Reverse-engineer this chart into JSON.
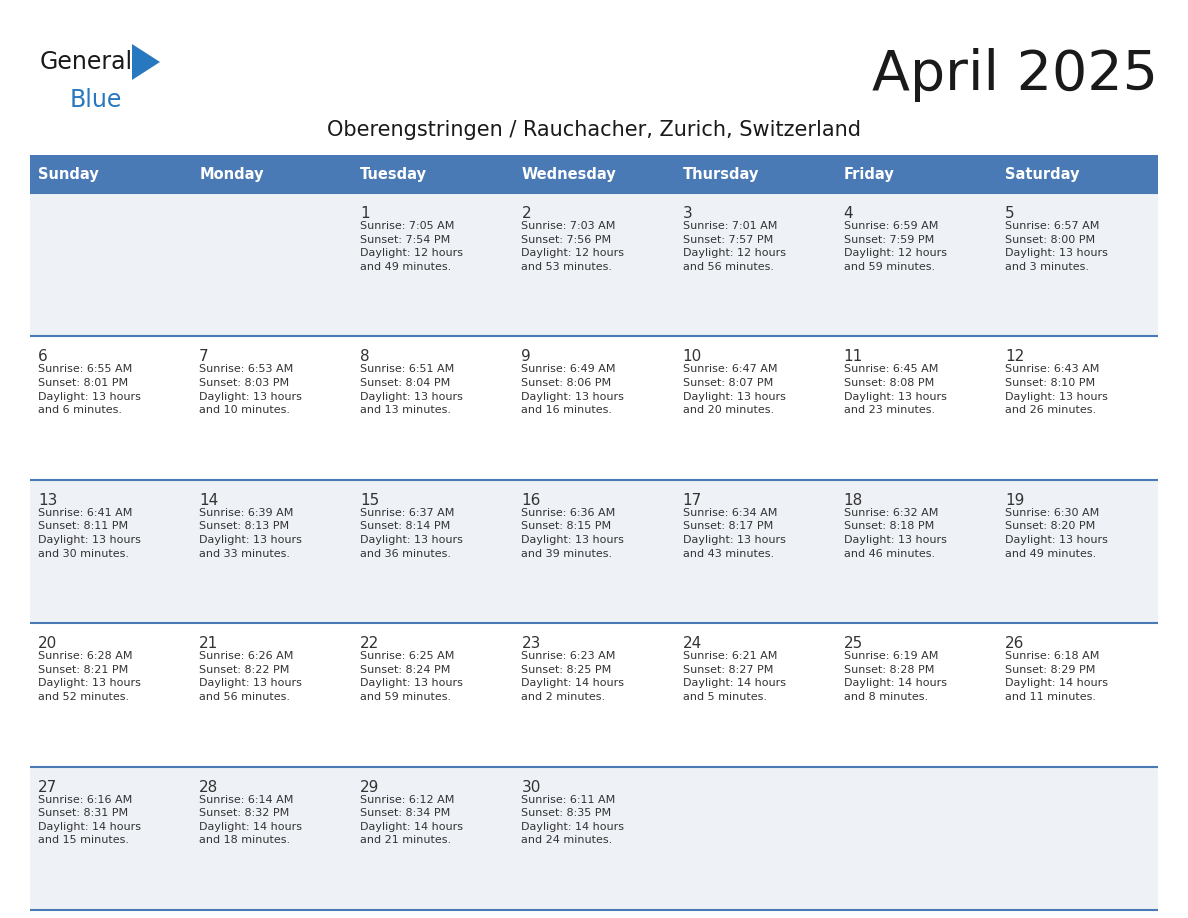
{
  "title": "April 2025",
  "subtitle": "Oberengstringen / Rauchacher, Zurich, Switzerland",
  "header_bg": "#4a7ab5",
  "header_text": "#ffffff",
  "row_bg_odd": "#eef2f7",
  "row_bg_even": "#ffffff",
  "border_color": "#4a7ab5",
  "day_num_color": "#333333",
  "info_text_color": "#333333",
  "logo_general_color": "#1a1a1a",
  "logo_blue_color": "#2878c0",
  "day_names": [
    "Sunday",
    "Monday",
    "Tuesday",
    "Wednesday",
    "Thursday",
    "Friday",
    "Saturday"
  ],
  "weeks": [
    [
      {
        "day": "",
        "info": ""
      },
      {
        "day": "",
        "info": ""
      },
      {
        "day": "1",
        "info": "Sunrise: 7:05 AM\nSunset: 7:54 PM\nDaylight: 12 hours\nand 49 minutes."
      },
      {
        "day": "2",
        "info": "Sunrise: 7:03 AM\nSunset: 7:56 PM\nDaylight: 12 hours\nand 53 minutes."
      },
      {
        "day": "3",
        "info": "Sunrise: 7:01 AM\nSunset: 7:57 PM\nDaylight: 12 hours\nand 56 minutes."
      },
      {
        "day": "4",
        "info": "Sunrise: 6:59 AM\nSunset: 7:59 PM\nDaylight: 12 hours\nand 59 minutes."
      },
      {
        "day": "5",
        "info": "Sunrise: 6:57 AM\nSunset: 8:00 PM\nDaylight: 13 hours\nand 3 minutes."
      }
    ],
    [
      {
        "day": "6",
        "info": "Sunrise: 6:55 AM\nSunset: 8:01 PM\nDaylight: 13 hours\nand 6 minutes."
      },
      {
        "day": "7",
        "info": "Sunrise: 6:53 AM\nSunset: 8:03 PM\nDaylight: 13 hours\nand 10 minutes."
      },
      {
        "day": "8",
        "info": "Sunrise: 6:51 AM\nSunset: 8:04 PM\nDaylight: 13 hours\nand 13 minutes."
      },
      {
        "day": "9",
        "info": "Sunrise: 6:49 AM\nSunset: 8:06 PM\nDaylight: 13 hours\nand 16 minutes."
      },
      {
        "day": "10",
        "info": "Sunrise: 6:47 AM\nSunset: 8:07 PM\nDaylight: 13 hours\nand 20 minutes."
      },
      {
        "day": "11",
        "info": "Sunrise: 6:45 AM\nSunset: 8:08 PM\nDaylight: 13 hours\nand 23 minutes."
      },
      {
        "day": "12",
        "info": "Sunrise: 6:43 AM\nSunset: 8:10 PM\nDaylight: 13 hours\nand 26 minutes."
      }
    ],
    [
      {
        "day": "13",
        "info": "Sunrise: 6:41 AM\nSunset: 8:11 PM\nDaylight: 13 hours\nand 30 minutes."
      },
      {
        "day": "14",
        "info": "Sunrise: 6:39 AM\nSunset: 8:13 PM\nDaylight: 13 hours\nand 33 minutes."
      },
      {
        "day": "15",
        "info": "Sunrise: 6:37 AM\nSunset: 8:14 PM\nDaylight: 13 hours\nand 36 minutes."
      },
      {
        "day": "16",
        "info": "Sunrise: 6:36 AM\nSunset: 8:15 PM\nDaylight: 13 hours\nand 39 minutes."
      },
      {
        "day": "17",
        "info": "Sunrise: 6:34 AM\nSunset: 8:17 PM\nDaylight: 13 hours\nand 43 minutes."
      },
      {
        "day": "18",
        "info": "Sunrise: 6:32 AM\nSunset: 8:18 PM\nDaylight: 13 hours\nand 46 minutes."
      },
      {
        "day": "19",
        "info": "Sunrise: 6:30 AM\nSunset: 8:20 PM\nDaylight: 13 hours\nand 49 minutes."
      }
    ],
    [
      {
        "day": "20",
        "info": "Sunrise: 6:28 AM\nSunset: 8:21 PM\nDaylight: 13 hours\nand 52 minutes."
      },
      {
        "day": "21",
        "info": "Sunrise: 6:26 AM\nSunset: 8:22 PM\nDaylight: 13 hours\nand 56 minutes."
      },
      {
        "day": "22",
        "info": "Sunrise: 6:25 AM\nSunset: 8:24 PM\nDaylight: 13 hours\nand 59 minutes."
      },
      {
        "day": "23",
        "info": "Sunrise: 6:23 AM\nSunset: 8:25 PM\nDaylight: 14 hours\nand 2 minutes."
      },
      {
        "day": "24",
        "info": "Sunrise: 6:21 AM\nSunset: 8:27 PM\nDaylight: 14 hours\nand 5 minutes."
      },
      {
        "day": "25",
        "info": "Sunrise: 6:19 AM\nSunset: 8:28 PM\nDaylight: 14 hours\nand 8 minutes."
      },
      {
        "day": "26",
        "info": "Sunrise: 6:18 AM\nSunset: 8:29 PM\nDaylight: 14 hours\nand 11 minutes."
      }
    ],
    [
      {
        "day": "27",
        "info": "Sunrise: 6:16 AM\nSunset: 8:31 PM\nDaylight: 14 hours\nand 15 minutes."
      },
      {
        "day": "28",
        "info": "Sunrise: 6:14 AM\nSunset: 8:32 PM\nDaylight: 14 hours\nand 18 minutes."
      },
      {
        "day": "29",
        "info": "Sunrise: 6:12 AM\nSunset: 8:34 PM\nDaylight: 14 hours\nand 21 minutes."
      },
      {
        "day": "30",
        "info": "Sunrise: 6:11 AM\nSunset: 8:35 PM\nDaylight: 14 hours\nand 24 minutes."
      },
      {
        "day": "",
        "info": ""
      },
      {
        "day": "",
        "info": ""
      },
      {
        "day": "",
        "info": ""
      }
    ]
  ]
}
